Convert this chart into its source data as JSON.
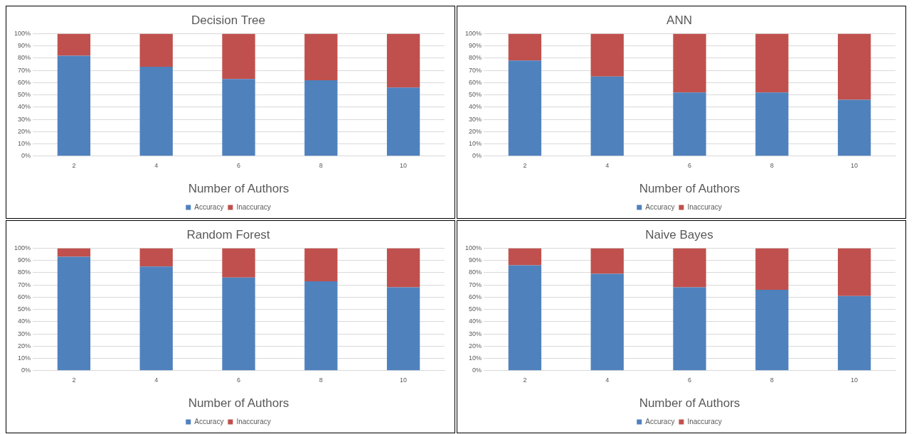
{
  "chart_data": [
    {
      "type": "bar",
      "title": "Decision Tree",
      "xlabel": "Number of Authors",
      "categories": [
        "2",
        "4",
        "6",
        "8",
        "10"
      ],
      "stacked": true,
      "legend": "bottom",
      "grid": "y",
      "ylim": [
        0,
        100
      ],
      "yticks": [
        {
          "value": 0,
          "label": "0%"
        },
        {
          "value": 10,
          "label": "10%"
        },
        {
          "value": 20,
          "label": "20%"
        },
        {
          "value": 30,
          "label": "30%"
        },
        {
          "value": 40,
          "label": "40%"
        },
        {
          "value": 50,
          "label": "50%"
        },
        {
          "value": 60,
          "label": "60%"
        },
        {
          "value": 70,
          "label": "70%"
        },
        {
          "value": 80,
          "label": "80%"
        },
        {
          "value": 90,
          "label": "90%"
        },
        {
          "value": 100,
          "label": "100%"
        }
      ],
      "series": [
        {
          "name": "Accuracy",
          "color": "#4f81bd",
          "values": [
            82,
            73,
            63,
            62,
            56
          ]
        },
        {
          "name": "Inaccuracy",
          "color": "#c0504d",
          "values": [
            18,
            27,
            37,
            38,
            44
          ]
        }
      ]
    },
    {
      "type": "bar",
      "title": "ANN",
      "xlabel": "Number of Authors",
      "categories": [
        "2",
        "4",
        "6",
        "8",
        "10"
      ],
      "stacked": true,
      "legend": "bottom",
      "grid": "y",
      "ylim": [
        0,
        100
      ],
      "yticks": [
        {
          "value": 0,
          "label": "0%"
        },
        {
          "value": 10,
          "label": "10%"
        },
        {
          "value": 20,
          "label": "20%"
        },
        {
          "value": 30,
          "label": "30%"
        },
        {
          "value": 40,
          "label": "40%"
        },
        {
          "value": 50,
          "label": "50%"
        },
        {
          "value": 60,
          "label": "60%"
        },
        {
          "value": 70,
          "label": "70%"
        },
        {
          "value": 80,
          "label": "80%"
        },
        {
          "value": 90,
          "label": "90%"
        },
        {
          "value": 100,
          "label": "100%"
        }
      ],
      "series": [
        {
          "name": "Accuracy",
          "color": "#4f81bd",
          "values": [
            78,
            65,
            52,
            52,
            46
          ]
        },
        {
          "name": "Inaccuracy",
          "color": "#c0504d",
          "values": [
            22,
            35,
            48,
            48,
            54
          ]
        }
      ]
    },
    {
      "type": "bar",
      "title": "Random Forest",
      "xlabel": "Number of Authors",
      "categories": [
        "2",
        "4",
        "6",
        "8",
        "10"
      ],
      "stacked": true,
      "legend": "bottom",
      "grid": "y",
      "ylim": [
        0,
        100
      ],
      "yticks": [
        {
          "value": 0,
          "label": "0%"
        },
        {
          "value": 10,
          "label": "10%"
        },
        {
          "value": 20,
          "label": "20%"
        },
        {
          "value": 30,
          "label": "30%"
        },
        {
          "value": 40,
          "label": "40%"
        },
        {
          "value": 50,
          "label": "50%"
        },
        {
          "value": 60,
          "label": "60%"
        },
        {
          "value": 70,
          "label": "70%"
        },
        {
          "value": 80,
          "label": "80%"
        },
        {
          "value": 90,
          "label": "90%"
        },
        {
          "value": 100,
          "label": "100%"
        }
      ],
      "series": [
        {
          "name": "Accuracy",
          "color": "#4f81bd",
          "values": [
            93,
            85,
            76,
            73,
            68
          ]
        },
        {
          "name": "Inaccuracy",
          "color": "#c0504d",
          "values": [
            7,
            15,
            24,
            27,
            32
          ]
        }
      ]
    },
    {
      "type": "bar",
      "title": "Naive Bayes",
      "xlabel": "Number of Authors",
      "categories": [
        "2",
        "4",
        "6",
        "8",
        "10"
      ],
      "stacked": true,
      "legend": "bottom",
      "grid": "y",
      "ylim": [
        0,
        100
      ],
      "yticks": [
        {
          "value": 0,
          "label": "0%"
        },
        {
          "value": 10,
          "label": "10%"
        },
        {
          "value": 20,
          "label": "20%"
        },
        {
          "value": 30,
          "label": "30%"
        },
        {
          "value": 40,
          "label": "40%"
        },
        {
          "value": 50,
          "label": "50%"
        },
        {
          "value": 60,
          "label": "60%"
        },
        {
          "value": 70,
          "label": "70%"
        },
        {
          "value": 80,
          "label": "80%"
        },
        {
          "value": 90,
          "label": "90%"
        },
        {
          "value": 100,
          "label": "100%"
        }
      ],
      "series": [
        {
          "name": "Accuracy",
          "color": "#4f81bd",
          "values": [
            86,
            79,
            68,
            66,
            61
          ]
        },
        {
          "name": "Inaccuracy",
          "color": "#c0504d",
          "values": [
            14,
            21,
            32,
            34,
            39
          ]
        }
      ]
    }
  ]
}
